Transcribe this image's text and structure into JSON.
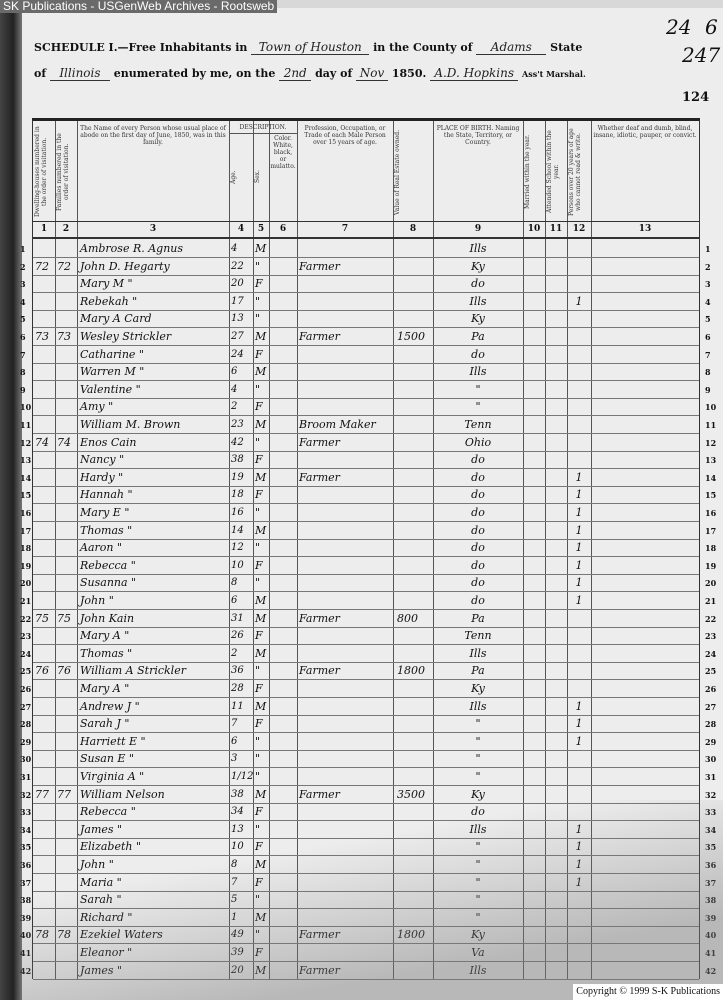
{
  "banner": "SK Publications - USGenWeb Archives - Rootsweb",
  "header": {
    "schedule": "SCHEDULE I.—Free Inhabitants in",
    "town": "Town of Houston",
    "county_label": "in the County of",
    "county": "Adams",
    "state_label": "State",
    "of_label": "of",
    "state": "Illinois",
    "enumerated_label": "enumerated by me, on the",
    "day": "2nd",
    "day_of_label": "day of",
    "month": "Nov",
    "year": "1850.",
    "marshal_name": "A.D. Hopkins",
    "marshal_label": "Ass't Marshal.",
    "page_stamp_1": "24",
    "page_stamp_2": "247",
    "page_stamp_3": "124",
    "corner_mark": "6"
  },
  "columns": [
    {
      "num": "1",
      "label": "Dwelling-houses numbered in the order of visitation."
    },
    {
      "num": "2",
      "label": "Families numbered in the order of visitation."
    },
    {
      "num": "3",
      "label": "The Name of every Person whose usual place of abode on the first day of June, 1850, was in this family."
    },
    {
      "num": "4",
      "label": "Age."
    },
    {
      "num": "5",
      "label": "Sex."
    },
    {
      "num": "6",
      "label": "Color. White, black, or mulatto."
    },
    {
      "num": "7",
      "label": "Profession, Occupation, or Trade of each Male Person over 15 years of age."
    },
    {
      "num": "8",
      "label": "Value of Real Estate owned."
    },
    {
      "num": "9",
      "label": "PLACE OF BIRTH. Naming the State, Territory, or Country."
    },
    {
      "num": "10",
      "label": "Married within the year."
    },
    {
      "num": "11",
      "label": "Attended School within the year."
    },
    {
      "num": "12",
      "label": "Persons over 20 years of age who cannot read & write."
    },
    {
      "num": "13",
      "label": "Whether deaf and dumb, blind, insane, idiotic, pauper, or convict."
    }
  ],
  "description_label": "DESCRIPTION.",
  "rows": [
    {
      "n": "1",
      "d": "",
      "f": "",
      "name": "Ambrose R. Agnus",
      "age": "4",
      "sex": "M",
      "occ": "",
      "val": "",
      "birth": "Ills",
      "sch": ""
    },
    {
      "n": "2",
      "d": "72",
      "f": "72",
      "name": "John D. Hegarty",
      "age": "22",
      "sex": "\"",
      "occ": "Farmer",
      "val": "",
      "birth": "Ky",
      "sch": ""
    },
    {
      "n": "3",
      "d": "",
      "f": "",
      "name": "Mary M    \"",
      "age": "20",
      "sex": "F",
      "occ": "",
      "val": "",
      "birth": "do",
      "sch": ""
    },
    {
      "n": "4",
      "d": "",
      "f": "",
      "name": "Rebekah    \"",
      "age": "17",
      "sex": "\"",
      "occ": "",
      "val": "",
      "birth": "Ills",
      "sch": "1"
    },
    {
      "n": "5",
      "d": "",
      "f": "",
      "name": "Mary A   Card",
      "age": "13",
      "sex": "\"",
      "occ": "",
      "val": "",
      "birth": "Ky",
      "sch": ""
    },
    {
      "n": "6",
      "d": "73",
      "f": "73",
      "name": "Wesley Strickler",
      "age": "27",
      "sex": "M",
      "occ": "Farmer",
      "val": "1500",
      "birth": "Pa",
      "sch": ""
    },
    {
      "n": "7",
      "d": "",
      "f": "",
      "name": "Catharine    \"",
      "age": "24",
      "sex": "F",
      "occ": "",
      "val": "",
      "birth": "do",
      "sch": ""
    },
    {
      "n": "8",
      "d": "",
      "f": "",
      "name": "Warren M    \"",
      "age": "6",
      "sex": "M",
      "occ": "",
      "val": "",
      "birth": "Ills",
      "sch": ""
    },
    {
      "n": "9",
      "d": "",
      "f": "",
      "name": "Valentine    \"",
      "age": "4",
      "sex": "\"",
      "occ": "",
      "val": "",
      "birth": "\"",
      "sch": ""
    },
    {
      "n": "10",
      "d": "",
      "f": "",
      "name": "Amy      \"",
      "age": "2",
      "sex": "F",
      "occ": "",
      "val": "",
      "birth": "\"",
      "sch": ""
    },
    {
      "n": "11",
      "d": "",
      "f": "",
      "name": "William M. Brown",
      "age": "23",
      "sex": "M",
      "occ": "Broom Maker",
      "val": "",
      "birth": "Tenn",
      "sch": ""
    },
    {
      "n": "12",
      "d": "74",
      "f": "74",
      "name": "Enos   Cain",
      "age": "42",
      "sex": "\"",
      "occ": "Farmer",
      "val": "",
      "birth": "Ohio",
      "sch": ""
    },
    {
      "n": "13",
      "d": "",
      "f": "",
      "name": "Nancy     \"",
      "age": "38",
      "sex": "F",
      "occ": "",
      "val": "",
      "birth": "do",
      "sch": ""
    },
    {
      "n": "14",
      "d": "",
      "f": "",
      "name": "Hardy     \"",
      "age": "19",
      "sex": "M",
      "occ": "Farmer",
      "val": "",
      "birth": "do",
      "sch": "1"
    },
    {
      "n": "15",
      "d": "",
      "f": "",
      "name": "Hannah    \"",
      "age": "18",
      "sex": "F",
      "occ": "",
      "val": "",
      "birth": "do",
      "sch": "1"
    },
    {
      "n": "16",
      "d": "",
      "f": "",
      "name": "Mary E    \"",
      "age": "16",
      "sex": "\"",
      "occ": "",
      "val": "",
      "birth": "do",
      "sch": "1"
    },
    {
      "n": "17",
      "d": "",
      "f": "",
      "name": "Thomas    \"",
      "age": "14",
      "sex": "M",
      "occ": "",
      "val": "",
      "birth": "do",
      "sch": "1"
    },
    {
      "n": "18",
      "d": "",
      "f": "",
      "name": "Aaron     \"",
      "age": "12",
      "sex": "\"",
      "occ": "",
      "val": "",
      "birth": "do",
      "sch": "1"
    },
    {
      "n": "19",
      "d": "",
      "f": "",
      "name": "Rebecca    \"",
      "age": "10",
      "sex": "F",
      "occ": "",
      "val": "",
      "birth": "do",
      "sch": "1"
    },
    {
      "n": "20",
      "d": "",
      "f": "",
      "name": "Susanna    \"",
      "age": "8",
      "sex": "\"",
      "occ": "",
      "val": "",
      "birth": "do",
      "sch": "1"
    },
    {
      "n": "21",
      "d": "",
      "f": "",
      "name": "John      \"",
      "age": "6",
      "sex": "M",
      "occ": "",
      "val": "",
      "birth": "do",
      "sch": "1"
    },
    {
      "n": "22",
      "d": "75",
      "f": "75",
      "name": "John   Kain",
      "age": "31",
      "sex": "M",
      "occ": "Farmer",
      "val": "800",
      "birth": "Pa",
      "sch": ""
    },
    {
      "n": "23",
      "d": "",
      "f": "",
      "name": "Mary A    \"",
      "age": "26",
      "sex": "F",
      "occ": "",
      "val": "",
      "birth": "Tenn",
      "sch": ""
    },
    {
      "n": "24",
      "d": "",
      "f": "",
      "name": "Thomas    \"",
      "age": "2",
      "sex": "M",
      "occ": "",
      "val": "",
      "birth": "Ills",
      "sch": ""
    },
    {
      "n": "25",
      "d": "76",
      "f": "76",
      "name": "William A Strickler",
      "age": "36",
      "sex": "\"",
      "occ": "Farmer",
      "val": "1800",
      "birth": "Pa",
      "sch": ""
    },
    {
      "n": "26",
      "d": "",
      "f": "",
      "name": "Mary A    \"",
      "age": "28",
      "sex": "F",
      "occ": "",
      "val": "",
      "birth": "Ky",
      "sch": ""
    },
    {
      "n": "27",
      "d": "",
      "f": "",
      "name": "Andrew J   \"",
      "age": "11",
      "sex": "M",
      "occ": "",
      "val": "",
      "birth": "Ills",
      "sch": "1"
    },
    {
      "n": "28",
      "d": "",
      "f": "",
      "name": "Sarah J   \"",
      "age": "7",
      "sex": "F",
      "occ": "",
      "val": "",
      "birth": "\"",
      "sch": "1"
    },
    {
      "n": "29",
      "d": "",
      "f": "",
      "name": "Harriett E   \"",
      "age": "6",
      "sex": "\"",
      "occ": "",
      "val": "",
      "birth": "\"",
      "sch": "1"
    },
    {
      "n": "30",
      "d": "",
      "f": "",
      "name": "Susan E    \"",
      "age": "3",
      "sex": "\"",
      "occ": "",
      "val": "",
      "birth": "\"",
      "sch": ""
    },
    {
      "n": "31",
      "d": "",
      "f": "",
      "name": "Virginia A   \"",
      "age": "1/12",
      "sex": "\"",
      "occ": "",
      "val": "",
      "birth": "\"",
      "sch": ""
    },
    {
      "n": "32",
      "d": "77",
      "f": "77",
      "name": "William Nelson",
      "age": "38",
      "sex": "M",
      "occ": "Farmer",
      "val": "3500",
      "birth": "Ky",
      "sch": ""
    },
    {
      "n": "33",
      "d": "",
      "f": "",
      "name": "Rebecca    \"",
      "age": "34",
      "sex": "F",
      "occ": "",
      "val": "",
      "birth": "do",
      "sch": ""
    },
    {
      "n": "34",
      "d": "",
      "f": "",
      "name": "James     \"",
      "age": "13",
      "sex": "\"",
      "occ": "",
      "val": "",
      "birth": "Ills",
      "sch": "1"
    },
    {
      "n": "35",
      "d": "",
      "f": "",
      "name": "Elizabeth   \"",
      "age": "10",
      "sex": "F",
      "occ": "",
      "val": "",
      "birth": "\"",
      "sch": "1"
    },
    {
      "n": "36",
      "d": "",
      "f": "",
      "name": "John      \"",
      "age": "8",
      "sex": "M",
      "occ": "",
      "val": "",
      "birth": "\"",
      "sch": "1"
    },
    {
      "n": "37",
      "d": "",
      "f": "",
      "name": "Maria     \"",
      "age": "7",
      "sex": "F",
      "occ": "",
      "val": "",
      "birth": "\"",
      "sch": "1"
    },
    {
      "n": "38",
      "d": "",
      "f": "",
      "name": "Sarah     \"",
      "age": "5",
      "sex": "\"",
      "occ": "",
      "val": "",
      "birth": "\"",
      "sch": ""
    },
    {
      "n": "39",
      "d": "",
      "f": "",
      "name": "Richard    \"",
      "age": "1",
      "sex": "M",
      "occ": "",
      "val": "",
      "birth": "\"",
      "sch": ""
    },
    {
      "n": "40",
      "d": "78",
      "f": "78",
      "name": "Ezekiel Waters",
      "age": "49",
      "sex": "\"",
      "occ": "Farmer",
      "val": "1800",
      "birth": "Ky",
      "sch": ""
    },
    {
      "n": "41",
      "d": "",
      "f": "",
      "name": "Eleanor    \"",
      "age": "39",
      "sex": "F",
      "occ": "",
      "val": "",
      "birth": "Va",
      "sch": ""
    },
    {
      "n": "42",
      "d": "",
      "f": "",
      "name": "James     \"",
      "age": "20",
      "sex": "M",
      "occ": "Farmer",
      "val": "",
      "birth": "Ills",
      "sch": ""
    }
  ],
  "footer": {
    "copyright": "Copyright © 1999 S-K Publications"
  }
}
